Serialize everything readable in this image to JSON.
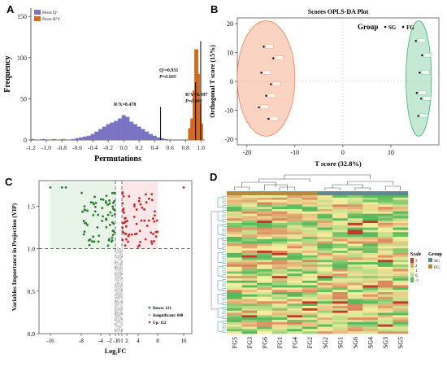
{
  "panels": {
    "A": "A",
    "B": "B",
    "C": "C",
    "D": "D"
  },
  "chart_data": [
    {
      "type": "bar",
      "panel": "A",
      "xlabel": "Permutations",
      "ylabel": "Frequency",
      "xlim": [
        -1.2,
        1.05
      ],
      "ylim": [
        0,
        160
      ],
      "xticks": [
        "-1.2",
        "-1.0",
        "-0.8",
        "-0.6",
        "-0.4",
        "-0.2",
        "0.0",
        "0.2",
        "0.4",
        "0.6",
        "0.8",
        "1.0"
      ],
      "yticks": [
        "0",
        "50",
        "100",
        "150"
      ],
      "legend_position": "top-left",
      "series": [
        {
          "name": "Perm Q²",
          "color": "#7a73c4",
          "bins": [
            [
              -1.18,
              1
            ],
            [
              -1.04,
              1
            ],
            [
              -0.9,
              1
            ],
            [
              -0.78,
              1
            ],
            [
              -0.65,
              1
            ],
            [
              -0.6,
              2
            ],
            [
              -0.55,
              3
            ],
            [
              -0.5,
              4
            ],
            [
              -0.45,
              5
            ],
            [
              -0.4,
              7
            ],
            [
              -0.35,
              10
            ],
            [
              -0.3,
              13
            ],
            [
              -0.25,
              16
            ],
            [
              -0.2,
              19
            ],
            [
              -0.15,
              21
            ],
            [
              -0.1,
              23
            ],
            [
              -0.05,
              26
            ],
            [
              0.0,
              30
            ],
            [
              0.05,
              28
            ],
            [
              0.1,
              22
            ],
            [
              0.15,
              19
            ],
            [
              0.2,
              16
            ],
            [
              0.25,
              13
            ],
            [
              0.3,
              10
            ],
            [
              0.35,
              7
            ],
            [
              0.4,
              5
            ],
            [
              0.45,
              3
            ],
            [
              0.5,
              2
            ],
            [
              0.55,
              1
            ]
          ]
        },
        {
          "name": "Perm R²Y",
          "color": "#d2691e",
          "bins": [
            [
              0.86,
              14
            ],
            [
              0.89,
              26
            ],
            [
              0.92,
              60
            ],
            [
              0.94,
              110
            ],
            [
              0.96,
              80
            ],
            [
              0.98,
              44
            ],
            [
              1.0,
              20
            ]
          ]
        }
      ],
      "annotations": [
        {
          "lines": [
            "Q²=0.931",
            "P=0.005"
          ]
        },
        {
          "lines": [
            "R²Y=0.997",
            "P=0.005"
          ]
        },
        {
          "lines": [
            "R²X=0.478"
          ]
        }
      ]
    },
    {
      "type": "scatter",
      "panel": "B",
      "title": "Scores OPLS-DA Plot",
      "xlabel": "T score (32.8%)",
      "ylabel": "Orthogonal T score (15%)",
      "xlim": [
        -22,
        20
      ],
      "ylim": [
        -22,
        22
      ],
      "xticks": [
        "-20",
        "-10",
        "0",
        "10"
      ],
      "yticks": [
        "-20",
        "-10",
        "0",
        "10",
        "20"
      ],
      "legend_title": "Group",
      "legend_position": "top-right",
      "series": [
        {
          "name": "SG",
          "color": "#000000",
          "ellipse_color": "#3cb371",
          "points": [
            [
              15.2,
              14
            ],
            [
              16.5,
              9
            ],
            [
              16,
              3
            ],
            [
              15.4,
              -4
            ],
            [
              16.3,
              -6
            ],
            [
              15.7,
              -12
            ]
          ],
          "labels": [
            "SG1",
            "SG2",
            "SG3",
            "SG4",
            "SG5",
            "SG6"
          ]
        },
        {
          "name": "FG",
          "color": "#000000",
          "ellipse_color": "#f08050",
          "points": [
            [
              -16.5,
              12
            ],
            [
              -14.5,
              8
            ],
            [
              -17,
              3
            ],
            [
              -15,
              -1
            ],
            [
              -16,
              -5
            ],
            [
              -17.5,
              -9
            ],
            [
              -15.5,
              -13
            ]
          ],
          "labels": [
            "FG1",
            "FG2",
            "FG3",
            "FG4",
            "FG5",
            "FG6",
            "FG7"
          ]
        }
      ]
    },
    {
      "type": "scatter",
      "panel": "C",
      "xlabel": "Log₂FC",
      "ylabel": "Variables Importance in Projection (VIP)",
      "xlim": [
        -18,
        17
      ],
      "ylim": [
        0,
        1.8
      ],
      "xticks": [
        "-16",
        "-8",
        "-4",
        "-2",
        "-1",
        "0",
        "1",
        "2",
        "4",
        "8",
        "16"
      ],
      "yticks": [
        "0.0",
        "0.5",
        "1.0",
        "1.5"
      ],
      "thresholds": {
        "vip": 1.0,
        "fc": [
          -1,
          1
        ]
      },
      "legend_position": "bottom-right",
      "series": [
        {
          "name": "Down: 121",
          "color": "#2e7d32"
        },
        {
          "name": "Insignificant: 600",
          "color": "#b0b0b0"
        },
        {
          "name": "Up: 112",
          "color": "#c62828"
        }
      ]
    },
    {
      "type": "heatmap",
      "panel": "D",
      "columns": [
        "FG5",
        "FG3",
        "FG6",
        "FG1",
        "FG4",
        "FG2",
        "SG2",
        "SG1",
        "SG6",
        "SG4",
        "SG3",
        "SG5"
      ],
      "column_groups": [
        "FG",
        "FG",
        "FG",
        "FG",
        "FG",
        "FG",
        "SG",
        "SG",
        "SG",
        "SG",
        "SG",
        "SG"
      ],
      "scale_title": "Scale",
      "scale_ticks": [
        "3",
        "2",
        "1",
        "0",
        "-1"
      ],
      "group_legend_title": "Group",
      "groups": [
        {
          "name": "SG",
          "color": "#5a8a96"
        },
        {
          "name": "FG",
          "color": "#b58a3a"
        }
      ],
      "colors": {
        "low": "#5cb85c",
        "mid": "#f6f0a0",
        "high": "#c0392b"
      }
    }
  ]
}
